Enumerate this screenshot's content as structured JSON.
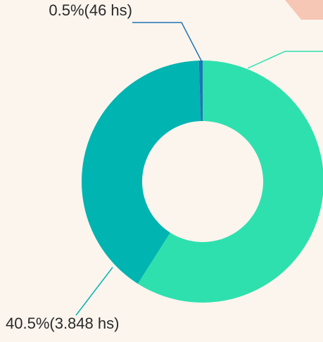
{
  "chart_data": {
    "type": "donut",
    "values": [
      59,
      40.5,
      0.5
    ],
    "value_labels": [
      null,
      "40.5%(3.848 hs)",
      "0.5%(46 hs)"
    ],
    "colors": [
      "#2ee0ae",
      "#00b4b1",
      "#1f74b4"
    ]
  }
}
